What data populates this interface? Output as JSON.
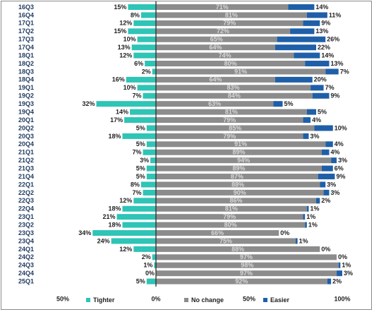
{
  "chart_data": {
    "type": "bar",
    "orientation": "horizontal",
    "stacked": true,
    "grid": false,
    "legend_position": "bottom",
    "categories": [
      "16Q3",
      "16Q4",
      "17Q1",
      "17Q2",
      "17Q3",
      "17Q4",
      "18Q1",
      "18Q2",
      "18Q3",
      "18Q4",
      "19Q1",
      "19Q2",
      "19Q3",
      "19Q4",
      "20Q1",
      "20Q2",
      "20Q3",
      "20Q4",
      "21Q1",
      "21Q2",
      "21Q3",
      "21Q4",
      "22Q1",
      "22Q2",
      "22Q3",
      "22Q4",
      "23Q1",
      "23Q2",
      "23Q3",
      "23Q4",
      "24Q1",
      "24Q2",
      "24Q3",
      "24Q4",
      "25Q1"
    ],
    "series": [
      {
        "name": "Tighter",
        "color": "#2ec4b6",
        "direction": "left",
        "values": [
          15,
          8,
          12,
          15,
          10,
          13,
          12,
          6,
          2,
          16,
          10,
          7,
          32,
          14,
          17,
          5,
          18,
          5,
          7,
          3,
          5,
          5,
          8,
          7,
          12,
          18,
          21,
          18,
          34,
          24,
          12,
          2,
          1,
          0,
          5
        ]
      },
      {
        "name": "No change",
        "color": "#8c8c8c",
        "direction": "right",
        "values": [
          71,
          81,
          79,
          72,
          65,
          64,
          74,
          80,
          91,
          64,
          83,
          84,
          63,
          81,
          79,
          85,
          79,
          91,
          89,
          94,
          89,
          87,
          88,
          90,
          86,
          81,
          79,
          80,
          66,
          75,
          88,
          97,
          98,
          97,
          92
        ]
      },
      {
        "name": "Easier",
        "color": "#1f5fa8",
        "direction": "right",
        "values": [
          14,
          11,
          9,
          13,
          26,
          22,
          14,
          13,
          7,
          20,
          7,
          9,
          5,
          5,
          4,
          10,
          3,
          4,
          4,
          3,
          6,
          9,
          3,
          3,
          2,
          1,
          1,
          1,
          0,
          1,
          0,
          0,
          1,
          3,
          2
        ]
      }
    ],
    "value_suffix": "%",
    "xaxis": {
      "ticks": [
        {
          "label": "50%",
          "value": -50
        },
        {
          "label": "0%",
          "value": 0
        },
        {
          "label": "50%",
          "value": 50
        },
        {
          "label": "100%",
          "value": 100
        }
      ],
      "range": [
        -50,
        100
      ]
    },
    "colors": {
      "zero_line": "#333333",
      "value_label_on_bar": "#d8d8d8"
    }
  }
}
